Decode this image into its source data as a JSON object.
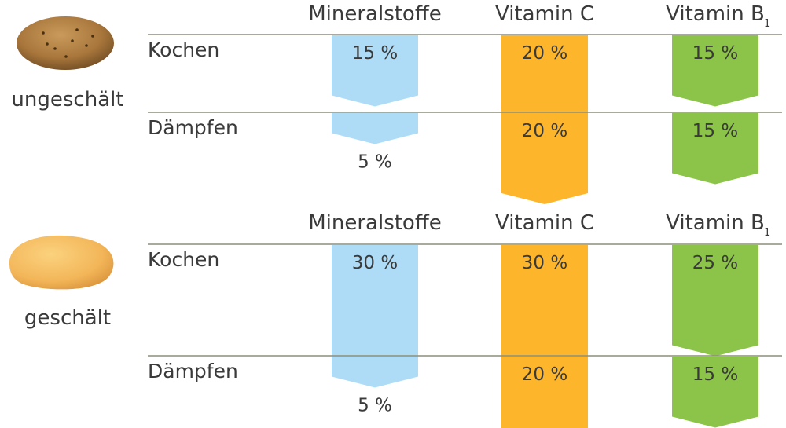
{
  "colors": {
    "mineralstoffe": "#aedcf7",
    "vitamin_c": "#fdb62b",
    "vitamin_b1": "#8cc349",
    "divider": "#8c8f7a",
    "potato_unpeeled": "#a9773c",
    "potato_peeled": "#f3b659"
  },
  "chart_data": {
    "type": "bar",
    "columns": [
      {
        "key": "mineralstoffe",
        "label": "Mineralstoffe",
        "subscript": ""
      },
      {
        "key": "vitamin_c",
        "label": "Vitamin C",
        "subscript": ""
      },
      {
        "key": "vitamin_b1",
        "label": "Vitamin B",
        "subscript": "1"
      }
    ],
    "groups": [
      {
        "name": "ungeschält",
        "icon": "potato-unpeeled-icon",
        "rows": [
          {
            "label": "Kochen",
            "values": [
              15,
              20,
              15
            ],
            "value_labels": [
              "15 %",
              "20 %",
              "15 %"
            ]
          },
          {
            "label": "Dämpfen",
            "values": [
              5,
              20,
              15
            ],
            "value_labels": [
              "5 %",
              "20 %",
              "15 %"
            ]
          }
        ]
      },
      {
        "name": "geschält",
        "icon": "potato-peeled-icon",
        "rows": [
          {
            "label": "Kochen",
            "values": [
              30,
              30,
              25
            ],
            "value_labels": [
              "30 %",
              "30 %",
              "25 %"
            ]
          },
          {
            "label": "Dämpfen",
            "values": [
              5,
              20,
              15
            ],
            "value_labels": [
              "5 %",
              "20 %",
              "15 %"
            ]
          }
        ]
      }
    ]
  }
}
